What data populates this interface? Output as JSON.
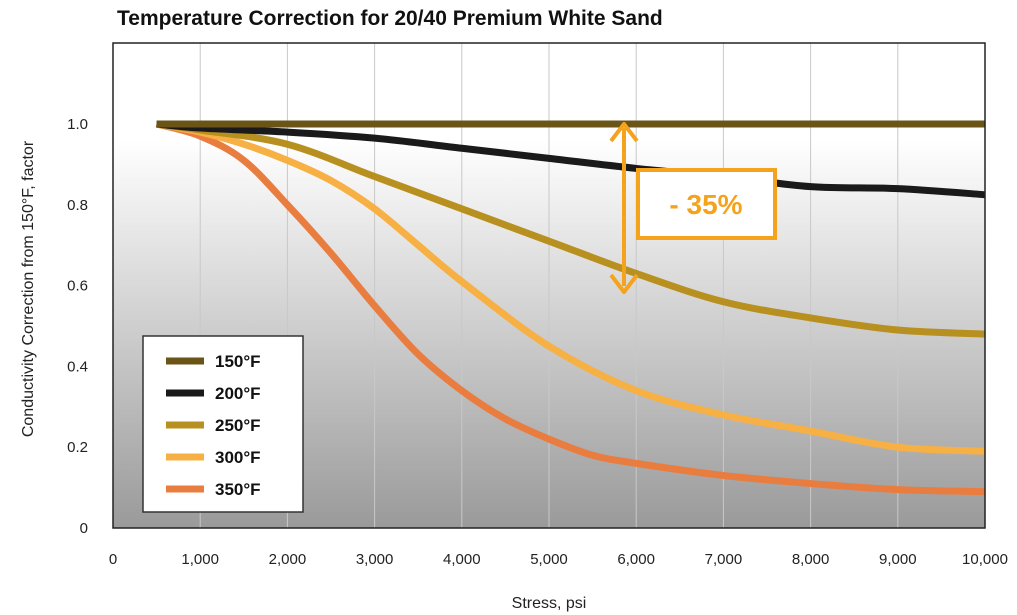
{
  "chart_data": {
    "type": "line",
    "title": "Temperature Correction for 20/40 Premium White Sand",
    "xlabel": "Stress, psi",
    "ylabel": "Conductivity Correction from 150°F, factor",
    "xlim": [
      0,
      10000
    ],
    "ylim": [
      0,
      1.0
    ],
    "x_ticks": [
      "0",
      "1,000",
      "2,000",
      "3,000",
      "4,000",
      "5,000",
      "6,000",
      "7,000",
      "8,000",
      "9,000",
      "10,000"
    ],
    "y_ticks": [
      "0",
      "0.2",
      "0.4",
      "0.6",
      "0.8",
      "1.0"
    ],
    "grid": true,
    "legend_position": "bottom-left",
    "series": [
      {
        "name": "150°F",
        "color": "#6b5417",
        "x": [
          500,
          10000
        ],
        "y": [
          1.0,
          1.0
        ]
      },
      {
        "name": "200°F",
        "color": "#1a1a1a",
        "x": [
          500,
          1000,
          2000,
          3000,
          4000,
          5000,
          6000,
          7000,
          8000,
          9000,
          10000
        ],
        "y": [
          1.0,
          0.99,
          0.98,
          0.965,
          0.94,
          0.915,
          0.89,
          0.87,
          0.845,
          0.84,
          0.825
        ]
      },
      {
        "name": "250°F",
        "color": "#b8901f",
        "x": [
          500,
          1000,
          2000,
          3000,
          4000,
          5000,
          6000,
          7000,
          8000,
          9000,
          10000
        ],
        "y": [
          1.0,
          0.985,
          0.95,
          0.87,
          0.79,
          0.71,
          0.63,
          0.56,
          0.52,
          0.49,
          0.48
        ]
      },
      {
        "name": "300°F",
        "color": "#f7b043",
        "x": [
          500,
          1000,
          1500,
          2000,
          2500,
          3000,
          3500,
          4000,
          5000,
          6000,
          7000,
          8000,
          9000,
          10000
        ],
        "y": [
          1.0,
          0.98,
          0.95,
          0.91,
          0.86,
          0.79,
          0.7,
          0.61,
          0.45,
          0.34,
          0.28,
          0.24,
          0.2,
          0.19
        ]
      },
      {
        "name": "350°F",
        "color": "#e97d3f",
        "x": [
          500,
          1000,
          1500,
          2000,
          2500,
          3000,
          3500,
          4000,
          4500,
          5000,
          5500,
          6000,
          7000,
          8000,
          9000,
          10000
        ],
        "y": [
          1.0,
          0.97,
          0.91,
          0.8,
          0.68,
          0.55,
          0.43,
          0.34,
          0.27,
          0.22,
          0.18,
          0.16,
          0.13,
          0.11,
          0.095,
          0.09
        ]
      }
    ],
    "annotation": {
      "text": "- 35%",
      "color": "#f5a21d"
    }
  }
}
